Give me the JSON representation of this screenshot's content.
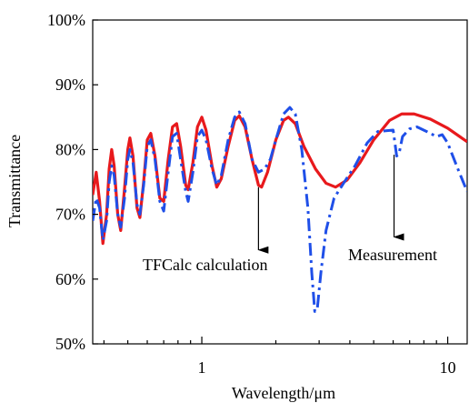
{
  "chart_data": {
    "type": "line",
    "title": "",
    "xlabel": "Wavelength/μm",
    "ylabel": "Transmittance",
    "xscale": "log",
    "xlim": [
      0.36,
      12.0
    ],
    "ylim": [
      50,
      100
    ],
    "x_ticks": [
      {
        "value": 1,
        "label": "1"
      },
      {
        "value": 10,
        "label": "10"
      }
    ],
    "y_ticks": [
      {
        "value": 50,
        "label": "50%"
      },
      {
        "value": 60,
        "label": "60%"
      },
      {
        "value": 70,
        "label": "70%"
      },
      {
        "value": 80,
        "label": "80%"
      },
      {
        "value": 90,
        "label": "90%"
      },
      {
        "value": 100,
        "label": "100%"
      }
    ],
    "grid": false,
    "legend": "none",
    "series": [
      {
        "style": "solid",
        "color": "#e8191c",
        "points": [
          [
            0.36,
            73.0
          ],
          [
            0.372,
            76.5
          ],
          [
            0.384,
            72.0
          ],
          [
            0.396,
            65.5
          ],
          [
            0.41,
            70.0
          ],
          [
            0.42,
            77.0
          ],
          [
            0.43,
            80.0
          ],
          [
            0.44,
            77.5
          ],
          [
            0.455,
            70.0
          ],
          [
            0.468,
            67.5
          ],
          [
            0.485,
            74.0
          ],
          [
            0.5,
            80.0
          ],
          [
            0.51,
            81.8
          ],
          [
            0.525,
            79.0
          ],
          [
            0.545,
            71.0
          ],
          [
            0.56,
            69.5
          ],
          [
            0.58,
            75.0
          ],
          [
            0.6,
            81.5
          ],
          [
            0.62,
            82.5
          ],
          [
            0.645,
            79.0
          ],
          [
            0.675,
            72.5
          ],
          [
            0.7,
            72.0
          ],
          [
            0.73,
            78.5
          ],
          [
            0.76,
            83.5
          ],
          [
            0.79,
            84.0
          ],
          [
            0.82,
            80.5
          ],
          [
            0.86,
            74.5
          ],
          [
            0.88,
            73.8
          ],
          [
            0.92,
            78.0
          ],
          [
            0.96,
            83.5
          ],
          [
            1.0,
            85.0
          ],
          [
            1.04,
            83.0
          ],
          [
            1.1,
            77.5
          ],
          [
            1.15,
            74.2
          ],
          [
            1.2,
            75.5
          ],
          [
            1.28,
            80.5
          ],
          [
            1.36,
            84.5
          ],
          [
            1.42,
            85.2
          ],
          [
            1.5,
            83.5
          ],
          [
            1.6,
            78.5
          ],
          [
            1.7,
            74.5
          ],
          [
            1.75,
            74.2
          ],
          [
            1.85,
            76.5
          ],
          [
            2.0,
            81.5
          ],
          [
            2.15,
            84.5
          ],
          [
            2.25,
            85.0
          ],
          [
            2.4,
            84.0
          ],
          [
            2.6,
            80.5
          ],
          [
            2.9,
            77.0
          ],
          [
            3.2,
            74.8
          ],
          [
            3.5,
            74.2
          ],
          [
            3.9,
            75.3
          ],
          [
            4.4,
            78.0
          ],
          [
            5.0,
            81.5
          ],
          [
            5.8,
            84.5
          ],
          [
            6.5,
            85.5
          ],
          [
            7.3,
            85.5
          ],
          [
            8.5,
            84.7
          ],
          [
            10.0,
            83.3
          ],
          [
            12.0,
            81.2
          ]
        ]
      },
      {
        "style": "dashdot",
        "color": "#1f4fe8",
        "points": [
          [
            0.36,
            69.0
          ],
          [
            0.372,
            72.5
          ],
          [
            0.384,
            71.0
          ],
          [
            0.396,
            66.0
          ],
          [
            0.41,
            69.0
          ],
          [
            0.42,
            75.0
          ],
          [
            0.43,
            77.5
          ],
          [
            0.44,
            76.0
          ],
          [
            0.455,
            70.0
          ],
          [
            0.468,
            68.0
          ],
          [
            0.485,
            72.5
          ],
          [
            0.5,
            78.5
          ],
          [
            0.51,
            80.0
          ],
          [
            0.525,
            78.0
          ],
          [
            0.545,
            71.5
          ],
          [
            0.56,
            70.0
          ],
          [
            0.58,
            74.5
          ],
          [
            0.6,
            80.5
          ],
          [
            0.62,
            81.5
          ],
          [
            0.645,
            78.5
          ],
          [
            0.675,
            72.0
          ],
          [
            0.7,
            70.5
          ],
          [
            0.73,
            76.5
          ],
          [
            0.76,
            82.0
          ],
          [
            0.79,
            82.5
          ],
          [
            0.82,
            78.5
          ],
          [
            0.86,
            73.5
          ],
          [
            0.88,
            72.0
          ],
          [
            0.92,
            76.5
          ],
          [
            0.96,
            82.0
          ],
          [
            1.0,
            83.0
          ],
          [
            1.04,
            81.5
          ],
          [
            1.1,
            77.0
          ],
          [
            1.15,
            74.5
          ],
          [
            1.2,
            76.0
          ],
          [
            1.28,
            81.5
          ],
          [
            1.36,
            85.0
          ],
          [
            1.42,
            85.8
          ],
          [
            1.5,
            84.0
          ],
          [
            1.6,
            78.5
          ],
          [
            1.7,
            76.5
          ],
          [
            1.8,
            77.0
          ],
          [
            1.9,
            78.5
          ],
          [
            2.0,
            81.5
          ],
          [
            2.15,
            85.5
          ],
          [
            2.28,
            86.5
          ],
          [
            2.4,
            85.5
          ],
          [
            2.55,
            80.0
          ],
          [
            2.7,
            71.0
          ],
          [
            2.8,
            61.0
          ],
          [
            2.88,
            55.0
          ],
          [
            2.95,
            55.5
          ],
          [
            3.05,
            61.0
          ],
          [
            3.2,
            67.5
          ],
          [
            3.45,
            72.5
          ],
          [
            3.8,
            75.0
          ],
          [
            4.2,
            77.5
          ],
          [
            4.7,
            81.0
          ],
          [
            5.2,
            82.8
          ],
          [
            6.0,
            83.0
          ],
          [
            6.1,
            81.0
          ],
          [
            6.2,
            79.0
          ],
          [
            6.35,
            79.5
          ],
          [
            6.55,
            82.0
          ],
          [
            7.0,
            83.2
          ],
          [
            7.5,
            83.5
          ],
          [
            8.2,
            82.8
          ],
          [
            9.0,
            82.0
          ],
          [
            9.5,
            82.3
          ],
          [
            10.0,
            81.0
          ],
          [
            11.0,
            77.0
          ],
          [
            12.0,
            73.5
          ]
        ]
      }
    ],
    "annotations": [
      {
        "text": "TFCalc calculation",
        "arrow_x": 1.7,
        "arrow_from_y": 74.2,
        "arrow_to_y": 64.5
      },
      {
        "text": "Measurement",
        "arrow_x": 6.05,
        "arrow_from_y": 79.2,
        "arrow_to_y": 66.5
      }
    ]
  }
}
